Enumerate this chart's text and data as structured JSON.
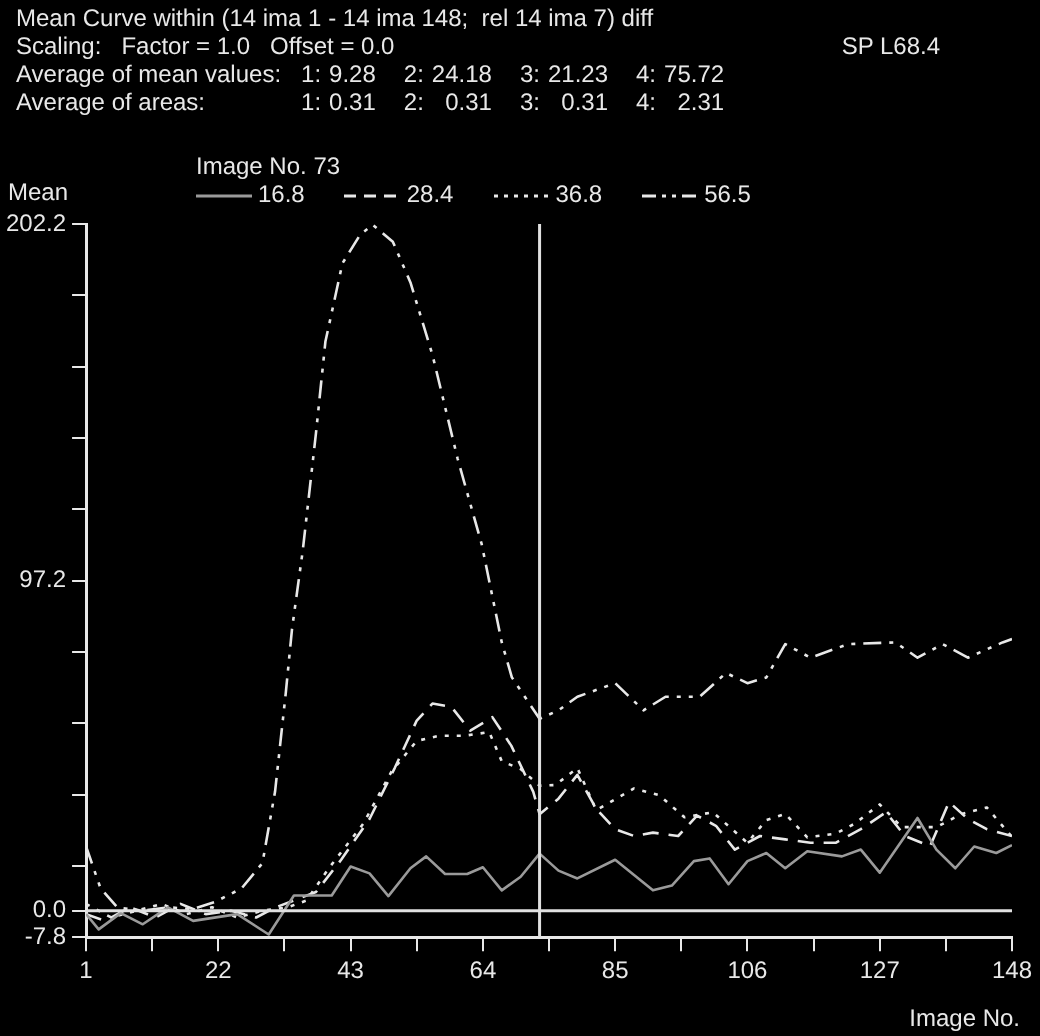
{
  "chart_data": {
    "type": "line",
    "title": "Mean Curve within (14 ima 1 - 14 ima 148;  rel 14 ima 7) diff",
    "annotations": [
      "Scaling:   Factor = 1.0   Offset = 0.0",
      "SP L68.4",
      "Average of mean values:   1:   9.28   2:   24.18   3:   21.23   4:   75.72",
      "Average of areas:   1:   0.31   2:   0.31   3:   0.31   4:   2.31"
    ],
    "ylabel": "Mean",
    "xlabel": "Image No.",
    "legend_title": "Image No. 73",
    "legend": "top",
    "xlim": [
      1,
      148
    ],
    "ylim": [
      -7.8,
      202.2
    ],
    "xticks": [
      1,
      {
        "value": 11.5,
        "label": null
      },
      22,
      {
        "value": 32.5,
        "label": null
      },
      43,
      {
        "value": 53.5,
        "label": null
      },
      64,
      {
        "value": 74.5,
        "label": null
      },
      85,
      {
        "value": 95.5,
        "label": null
      },
      106,
      {
        "value": 116.5,
        "label": null
      },
      127,
      {
        "value": 137.5,
        "label": null
      },
      148
    ],
    "yticks": [
      -7.8,
      {
        "value": 0,
        "label": "0.0"
      },
      {
        "value": 13.2,
        "label": null
      },
      {
        "value": 34.2,
        "label": null
      },
      {
        "value": 55.2,
        "label": null
      },
      {
        "value": 76.2,
        "label": null
      },
      97.2,
      {
        "value": 118.2,
        "label": null
      },
      {
        "value": 139.2,
        "label": null
      },
      {
        "value": 160.2,
        "label": null
      },
      {
        "value": 181.2,
        "label": null
      },
      202.2
    ],
    "grid": false,
    "ref_lines": [
      {
        "axis": "x",
        "value": 73,
        "color": "#e0e0e0"
      },
      {
        "axis": "y",
        "value": 0,
        "color": "#e0e0e0"
      }
    ],
    "series": [
      {
        "name": "16.8",
        "color": "#9a9a9a",
        "line_style": "solid",
        "x": [
          1,
          3,
          6.5,
          10,
          14,
          18,
          25,
          30,
          34,
          40,
          43,
          46,
          49,
          52.5,
          55,
          58,
          61.5,
          64,
          67,
          70,
          73,
          76,
          79,
          85,
          91,
          94,
          97.5,
          100,
          103,
          106,
          109,
          112,
          115.5,
          121,
          124,
          127,
          133,
          136,
          139,
          142,
          145.5,
          148
        ],
        "values": [
          -1,
          -5.5,
          -0.7,
          -4,
          1,
          -3,
          -1,
          -7,
          4.5,
          4.5,
          13,
          11,
          4.3,
          12.5,
          16,
          10.8,
          10.8,
          12.8,
          6,
          10,
          16.8,
          11.8,
          9.5,
          15,
          6,
          7.4,
          14.6,
          15.4,
          7.8,
          14.6,
          17,
          12.5,
          17.5,
          16,
          18,
          11.2,
          27.3,
          18,
          12.5,
          18.9,
          17,
          19.3
        ]
      },
      {
        "name": "28.4",
        "color": "#e8e8e8",
        "line_style": "dashed",
        "x": [
          1,
          4,
          8,
          12,
          16,
          20,
          24,
          28,
          31,
          37.5,
          41.5,
          46,
          50,
          53.5,
          56,
          59,
          62,
          65.5,
          68.5,
          72,
          73,
          76,
          79,
          82,
          85,
          88,
          91,
          95,
          98,
          101,
          104,
          108,
          112,
          116,
          120,
          124,
          128,
          131,
          135,
          138,
          141,
          144,
          148
        ],
        "values": [
          -1,
          -3,
          1,
          -2,
          2,
          -1,
          0,
          -2,
          0.9,
          5.5,
          15,
          27,
          42,
          56,
          61,
          60,
          53,
          57,
          48.6,
          35,
          28.4,
          33,
          40,
          30,
          24,
          22,
          23,
          22,
          28,
          25,
          18,
          22,
          21,
          20,
          20,
          24,
          29,
          22,
          19,
          32,
          27,
          24,
          22
        ]
      },
      {
        "name": "36.8",
        "color": "#e8e8e8",
        "line_style": "dotted",
        "x": [
          1,
          5,
          9,
          13,
          17,
          21,
          25,
          29,
          33,
          36,
          39.5,
          45,
          49.5,
          53.5,
          57,
          61,
          65,
          67,
          70,
          73,
          75.5,
          79,
          82,
          88,
          92,
          96,
          100.5,
          106,
          109,
          112,
          115.5,
          120,
          123,
          127,
          130.5,
          136,
          140,
          144,
          148
        ],
        "values": [
          2,
          -2,
          0,
          2,
          -1,
          1,
          -2,
          0,
          1,
          3,
          12.4,
          25.6,
          41,
          50,
          51.5,
          51.5,
          52.6,
          44,
          41.7,
          36.8,
          37,
          42,
          29.6,
          36,
          34,
          27.5,
          29,
          20,
          26.7,
          28.5,
          21.6,
          22.7,
          25.6,
          31.3,
          24.6,
          24.6,
          28.5,
          30.4,
          21.7
        ]
      },
      {
        "name": "56.5",
        "color": "#e8e8e8",
        "line_style": "dashdot",
        "x": [
          1,
          3.3,
          6,
          10,
          14,
          18,
          21.5,
          25.7,
          29,
          31,
          32.7,
          33.7,
          35.4,
          37.5,
          39,
          41.7,
          44.5,
          46.5,
          49.7,
          52.5,
          56,
          60,
          63.8,
          67,
          68.6,
          73,
          76,
          79,
          85,
          89.5,
          93,
          98.4,
          102.6,
          106,
          109,
          112,
          116,
          122,
          129.5,
          133,
          137,
          141,
          146.5,
          148
        ],
        "values": [
          18.9,
          6.6,
          0.9,
          0,
          1,
          0.5,
          2.6,
          6.6,
          14,
          35,
          64,
          83,
          106,
          140.6,
          167.6,
          190.6,
          199,
          202,
          197,
          185,
          163.6,
          133,
          108,
          79,
          68.7,
          56.5,
          59,
          63,
          67,
          59,
          63,
          63,
          70,
          67,
          68.7,
          78.5,
          74.5,
          78.5,
          79,
          74.5,
          78.5,
          74.5,
          79,
          80
        ]
      }
    ]
  }
}
